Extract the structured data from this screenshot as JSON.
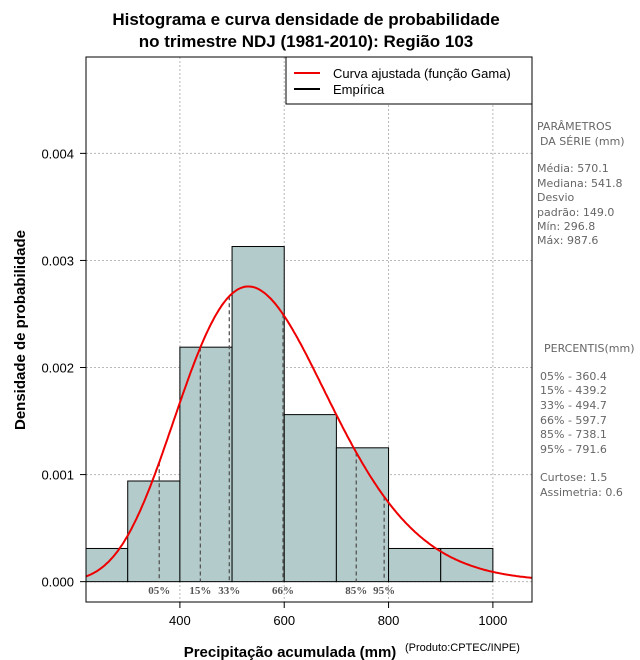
{
  "chart_data": {
    "type": "histogram",
    "title": [
      "Histograma e curva densidade de probabilidade",
      "no trimestre NDJ (1981-2010): Região 103"
    ],
    "xlabel": "Precipitação acumulada (mm)",
    "ylabel": "Densidade de probabilidade",
    "xlim": [
      220,
      1075
    ],
    "ylim": [
      -0.00019,
      0.0049
    ],
    "xticks": [
      400,
      600,
      800,
      1000
    ],
    "xtick_labels": [
      "400",
      "600",
      "800",
      "1000"
    ],
    "yticks": [
      0.0,
      0.001,
      0.002,
      0.003,
      0.004
    ],
    "ytick_labels": [
      "0.000",
      "0.001",
      "0.002",
      "0.003",
      "0.004"
    ],
    "bins": [
      {
        "start": 200,
        "end": 300,
        "density": 0.00031
      },
      {
        "start": 300,
        "end": 400,
        "density": 0.00094
      },
      {
        "start": 400,
        "end": 500,
        "density": 0.00219
      },
      {
        "start": 500,
        "end": 600,
        "density": 0.00313
      },
      {
        "start": 600,
        "end": 700,
        "density": 0.00156
      },
      {
        "start": 700,
        "end": 800,
        "density": 0.00125
      },
      {
        "start": 800,
        "end": 900,
        "density": 0.00031
      },
      {
        "start": 900,
        "end": 1000,
        "density": 0.00031
      }
    ],
    "gamma_fit": {
      "mean": 570.1,
      "sd": 149.0
    },
    "percentile_lines": [
      {
        "label": "05%",
        "value": 360.4
      },
      {
        "label": "15%",
        "value": 439.2
      },
      {
        "label": "33%",
        "value": 494.7
      },
      {
        "label": "66%",
        "value": 597.7
      },
      {
        "label": "85%",
        "value": 738.1
      },
      {
        "label": "95%",
        "value": 791.6
      }
    ],
    "legend": [
      {
        "label": "Curva ajustada (função Gama)",
        "color": "#ee0000"
      },
      {
        "label": "Empírica",
        "color": "#000000"
      }
    ],
    "legend_position": "top-right",
    "grid": true,
    "colors": {
      "bar_fill": "#b3cccb",
      "curve": "#ee0000"
    }
  },
  "credit": "(Produto:CPTEC/INPE)",
  "side_panel": {
    "params_title": [
      "PARÂMETROS",
      "DA SÉRIE (mm)"
    ],
    "params": [
      "Média:  570.1",
      "Mediana:  541.8",
      "Desvio",
      "padrão:  149.0",
      "Mín:  296.8",
      "Máx:  987.6"
    ],
    "percentiles_title": "PERCENTIS(mm)",
    "percentiles": [
      "05% -   360.4",
      "15% -   439.2",
      "33% -   494.7",
      "66% -   597.7",
      "85% -   738.1",
      "95% -   791.6"
    ],
    "stats": [
      "Curtose:  1.5",
      "Assimetria:  0.6"
    ]
  }
}
